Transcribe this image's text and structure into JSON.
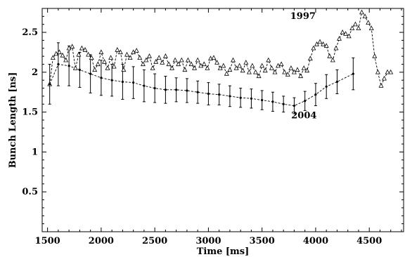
{
  "chart_data": {
    "type": "line",
    "title": "",
    "xlabel": "Time [ms]",
    "ylabel": "Bunch Length [ns]",
    "xlim": [
      1450,
      4820
    ],
    "ylim": [
      0,
      2.8
    ],
    "xticks": [
      "1500",
      "2000",
      "2500",
      "3000",
      "3500",
      "4000",
      "4500"
    ],
    "yticks": [
      "0.5",
      "1",
      "1.5",
      "2",
      "2.5"
    ],
    "grid": false,
    "legend": "none",
    "series": [
      {
        "name": "1997",
        "label_at": [
          4000,
          2.67
        ],
        "marker": "open-triangle",
        "line": "dashed",
        "x": [
          1520,
          1550,
          1580,
          1610,
          1640,
          1670,
          1700,
          1730,
          1760,
          1790,
          1820,
          1850,
          1880,
          1910,
          1940,
          1970,
          2000,
          2030,
          2060,
          2090,
          2120,
          2150,
          2180,
          2210,
          2240,
          2270,
          2300,
          2330,
          2360,
          2390,
          2420,
          2450,
          2480,
          2510,
          2540,
          2570,
          2600,
          2630,
          2660,
          2690,
          2720,
          2750,
          2780,
          2810,
          2840,
          2870,
          2900,
          2930,
          2960,
          2990,
          3020,
          3050,
          3080,
          3110,
          3140,
          3170,
          3200,
          3230,
          3260,
          3290,
          3320,
          3350,
          3380,
          3410,
          3440,
          3470,
          3500,
          3530,
          3560,
          3590,
          3620,
          3650,
          3680,
          3710,
          3740,
          3770,
          3800,
          3830,
          3860,
          3890,
          3920,
          3950,
          3980,
          4010,
          4040,
          4070,
          4100,
          4130,
          4160,
          4190,
          4220,
          4250,
          4280,
          4310,
          4340,
          4370,
          4400,
          4430,
          4460,
          4490,
          4520,
          4550,
          4580,
          4610,
          4640,
          4670,
          4700
        ],
        "y": [
          1.85,
          2.18,
          2.23,
          2.25,
          2.21,
          2.15,
          2.3,
          2.32,
          2.05,
          2.22,
          2.3,
          2.28,
          2.22,
          2.18,
          2.03,
          2.1,
          2.25,
          2.13,
          2.05,
          2.18,
          2.07,
          2.28,
          2.25,
          2.03,
          2.22,
          2.18,
          2.25,
          2.27,
          2.18,
          2.1,
          2.15,
          2.2,
          2.05,
          2.13,
          2.18,
          2.12,
          2.2,
          2.1,
          2.05,
          2.15,
          2.1,
          2.15,
          2.03,
          2.15,
          2.1,
          2.05,
          2.15,
          2.08,
          2.1,
          2.05,
          2.17,
          2.18,
          2.12,
          2.05,
          2.08,
          1.98,
          2.03,
          2.15,
          2.05,
          2.08,
          2.02,
          2.12,
          2.0,
          2.08,
          2.0,
          1.95,
          2.08,
          2.02,
          2.15,
          2.05,
          2.0,
          2.08,
          2.1,
          2.0,
          1.97,
          2.05,
          2.0,
          2.03,
          1.95,
          2.05,
          2.02,
          2.17,
          2.3,
          2.35,
          2.38,
          2.35,
          2.33,
          2.2,
          2.15,
          2.3,
          2.42,
          2.5,
          2.48,
          2.45,
          2.55,
          2.6,
          2.55,
          2.75,
          2.7,
          2.62,
          2.55,
          2.2,
          2.0,
          1.83,
          1.92,
          2.0,
          2.0
        ]
      },
      {
        "name": "2004",
        "label_at": [
          4010,
          1.42
        ],
        "marker": "filled-dot",
        "line": "dashed",
        "x": [
          1520,
          1600,
          1700,
          1800,
          1900,
          2000,
          2100,
          2200,
          2300,
          2400,
          2500,
          2600,
          2700,
          2800,
          2900,
          3000,
          3100,
          3200,
          3300,
          3400,
          3500,
          3600,
          3700,
          3800,
          3900,
          4000,
          4100,
          4200,
          4350
        ],
        "y": [
          1.85,
          2.1,
          2.08,
          2.03,
          1.98,
          1.93,
          1.9,
          1.88,
          1.87,
          1.83,
          1.8,
          1.78,
          1.78,
          1.77,
          1.75,
          1.73,
          1.72,
          1.7,
          1.68,
          1.67,
          1.65,
          1.63,
          1.6,
          1.58,
          1.64,
          1.72,
          1.82,
          1.88,
          1.98
        ],
        "err": [
          0.25,
          0.27,
          0.25,
          0.22,
          0.24,
          0.22,
          0.2,
          0.22,
          0.2,
          0.2,
          0.18,
          0.17,
          0.15,
          0.15,
          0.14,
          0.14,
          0.13,
          0.13,
          0.12,
          0.12,
          0.12,
          0.12,
          0.1,
          0.1,
          0.12,
          0.14,
          0.15,
          0.15,
          0.2
        ]
      }
    ]
  }
}
